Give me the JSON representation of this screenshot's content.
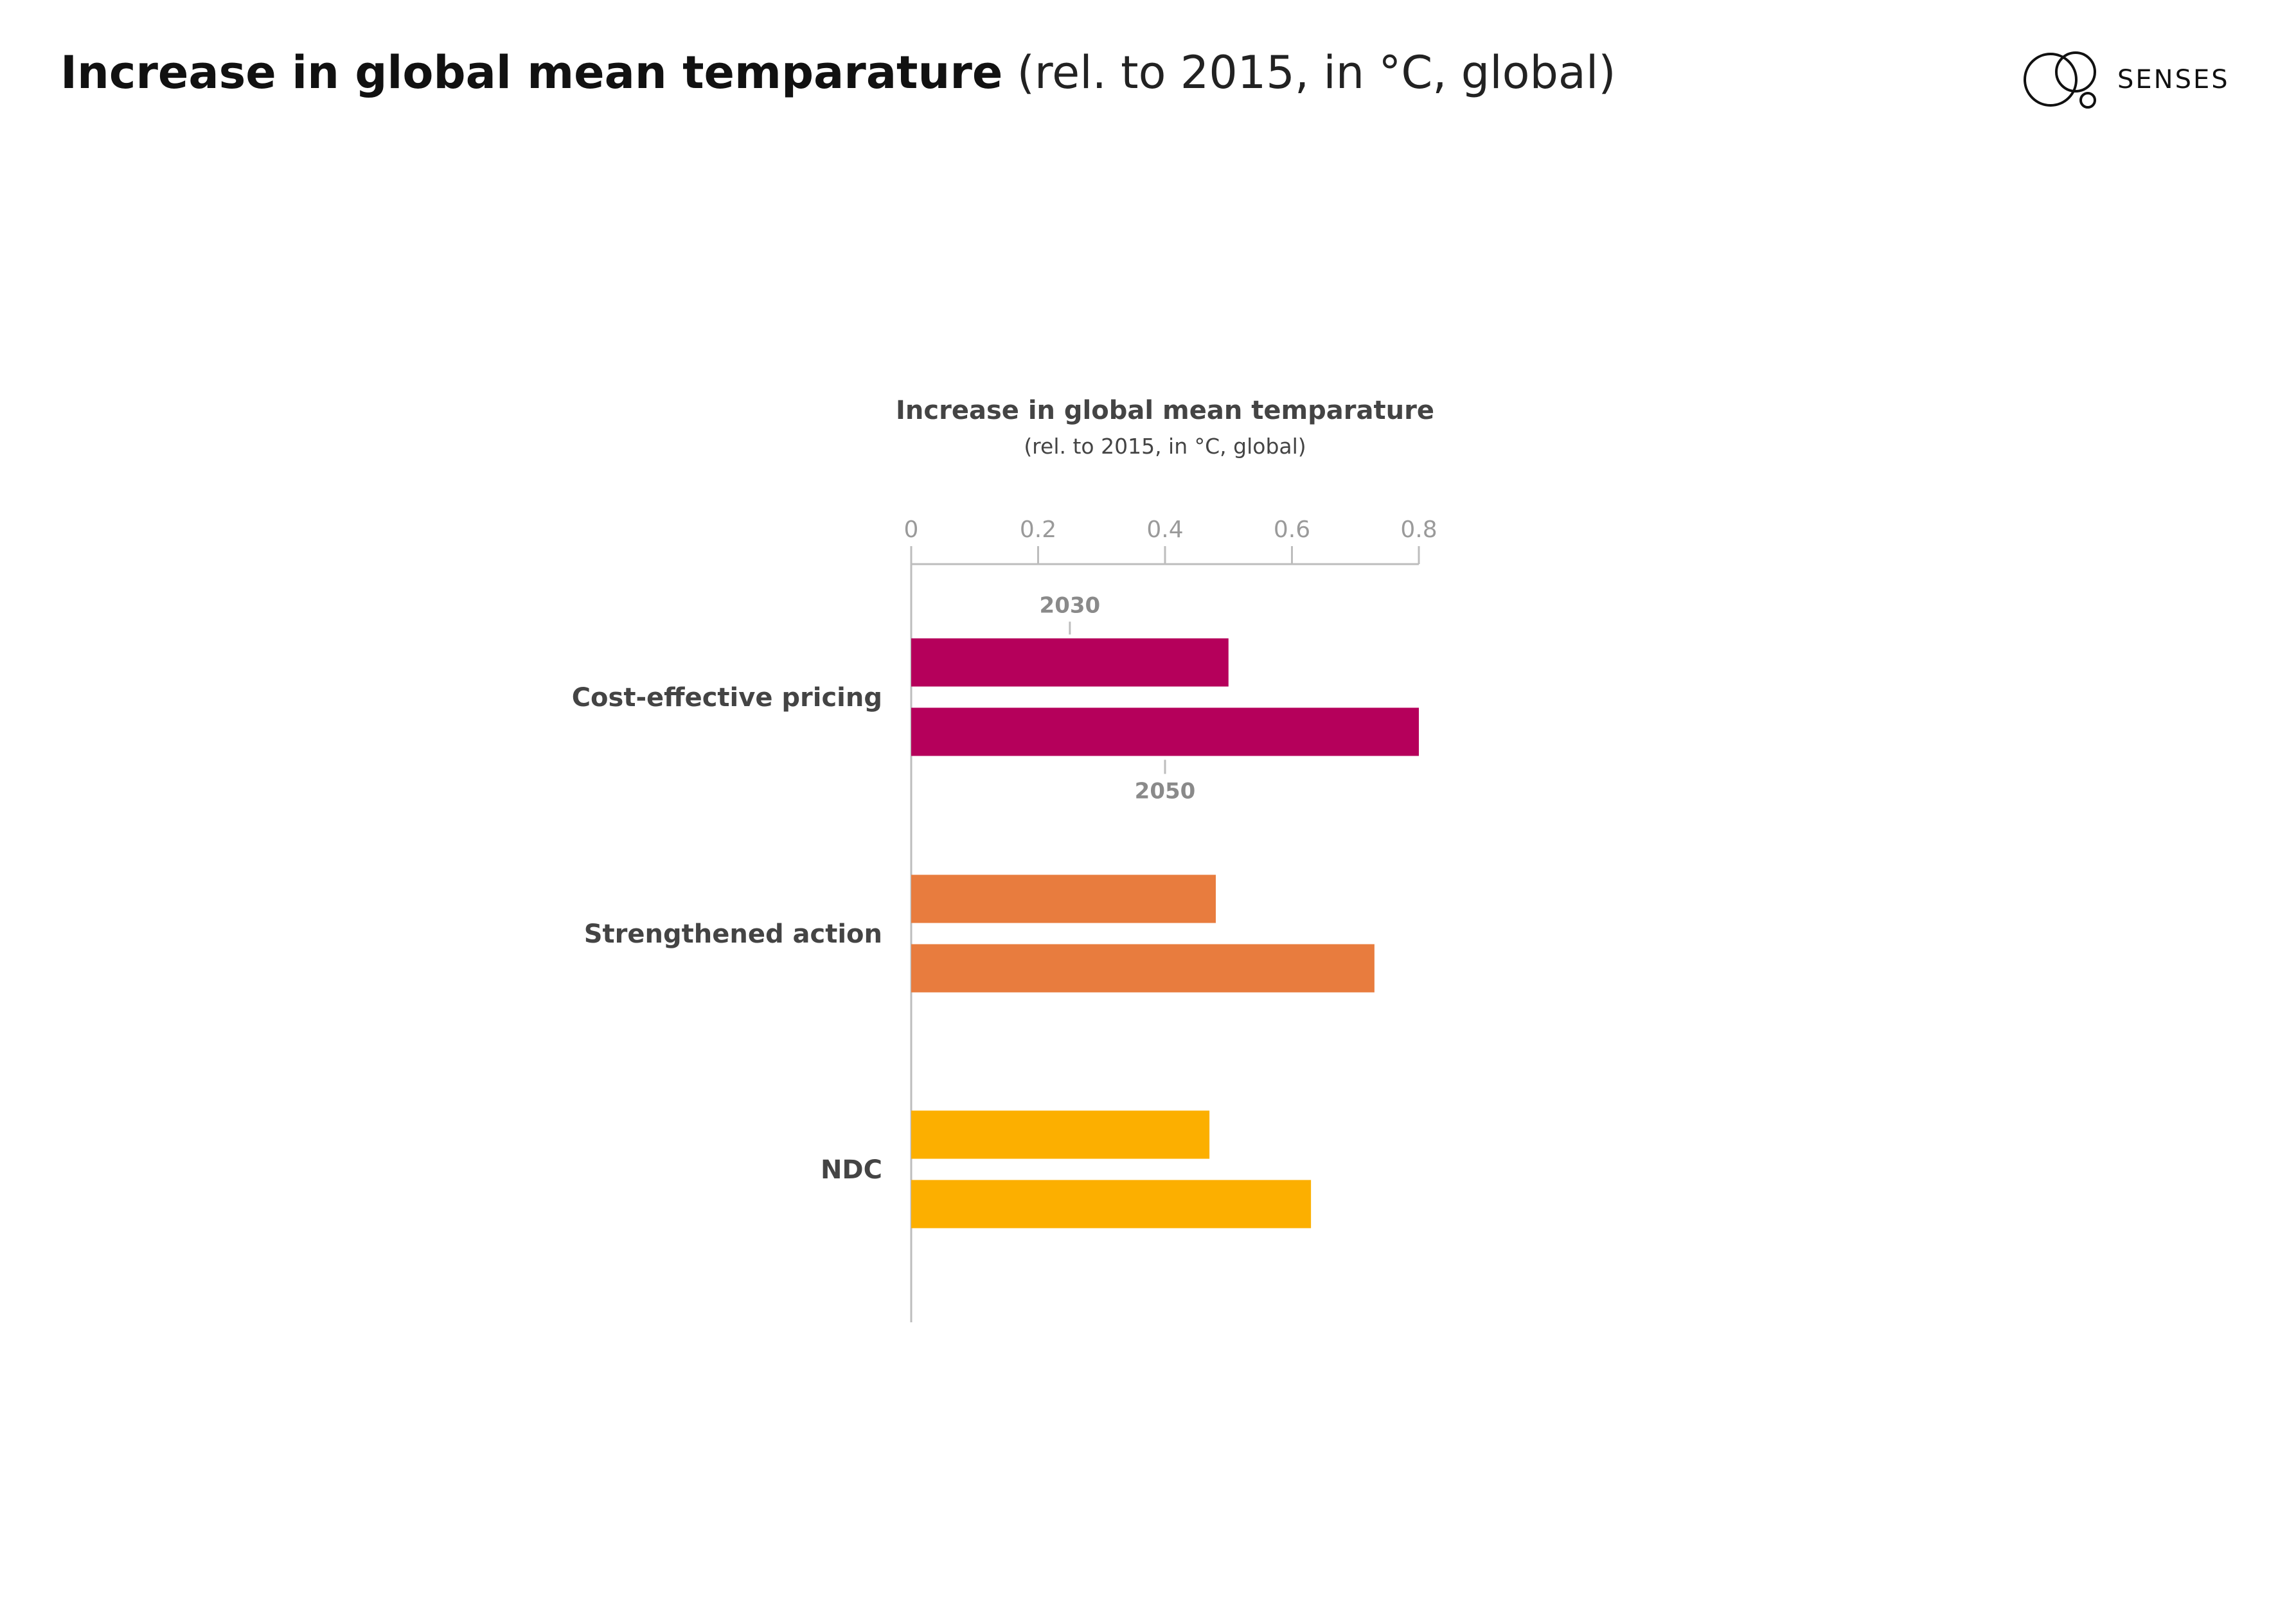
{
  "header": {
    "title_bold": "Increase in global mean temparature",
    "title_light": "(rel. to 2015, in °C, global)",
    "logo_text": "SENSES",
    "logo_icon": "overlapping-circles-icon"
  },
  "chart_data": {
    "type": "bar",
    "orientation": "horizontal",
    "title": "Increase in global mean temparature",
    "subtitle": "(rel. to 2015, in °C, global)",
    "xlim": [
      0,
      0.8
    ],
    "x_ticks": [
      "0",
      "0.2",
      "0.4",
      "0.6",
      "0.8"
    ],
    "x_tick_values": [
      0,
      0.2,
      0.4,
      0.6,
      0.8
    ],
    "grid": false,
    "bar_year_labels": [
      "2030",
      "2050"
    ],
    "categories": [
      "Cost-effective pricing",
      "Strengthened action",
      "NDC"
    ],
    "colors": [
      "#b5005b",
      "#e87c3e",
      "#fcaf00"
    ],
    "series": [
      {
        "name": "2030",
        "values": [
          0.5,
          0.48,
          0.47
        ]
      },
      {
        "name": "2050",
        "values": [
          0.8,
          0.73,
          0.63
        ]
      }
    ]
  }
}
